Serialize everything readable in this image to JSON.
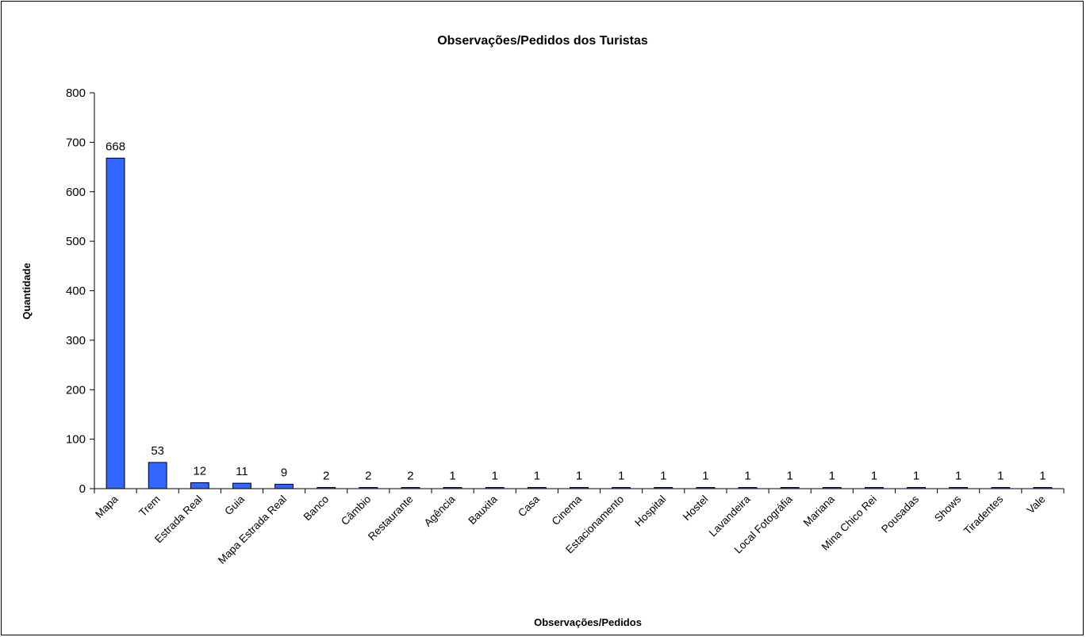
{
  "chart_data": {
    "type": "bar",
    "title": "Observações/Pedidos dos Turistas",
    "xlabel": "Observações/Pedidos",
    "ylabel": "Quantidade",
    "ylim": [
      0,
      800
    ],
    "yticks": [
      0,
      100,
      200,
      300,
      400,
      500,
      600,
      700,
      800
    ],
    "grid": false,
    "legend": "none",
    "bar_color": "#3366ff",
    "categories": [
      "Mapa",
      "Trem",
      "Estrada Real",
      "Guia",
      "Mapa Estrada Real",
      "Banco",
      "Câmbio",
      "Restaurante",
      "Agência",
      "Bauxita",
      "Casa",
      "Cinema",
      "Estacionamento",
      "Hospital",
      "Hostel",
      "Lavandeira",
      "Local Fotográfia",
      "Mariana",
      "Mina Chico Rei",
      "Pousadas",
      "Shows",
      "Tiradentes",
      "Vale"
    ],
    "values": [
      668,
      53,
      12,
      11,
      9,
      2,
      2,
      2,
      1,
      1,
      1,
      1,
      1,
      1,
      1,
      1,
      1,
      1,
      1,
      1,
      1,
      1,
      1
    ],
    "data_labels": [
      "668",
      "53",
      "12",
      "11",
      "9",
      "2",
      "2",
      "2",
      "1",
      "1",
      "1",
      "1",
      "1",
      "1",
      "1",
      "1",
      "1",
      "1",
      "1",
      "1",
      "1",
      "1",
      "1"
    ]
  }
}
